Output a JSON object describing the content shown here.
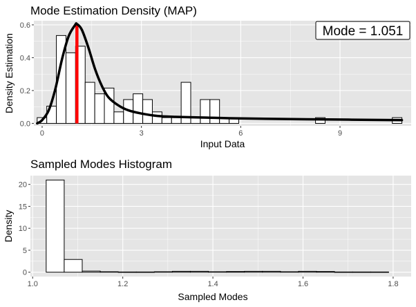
{
  "colors": {
    "panel_background": "#e5e5e5",
    "grid_major": "#ffffff",
    "bar_fill": "#ffffff",
    "bar_outline": "#000000",
    "density_line": "#000000",
    "mode_line": "#ff0000"
  },
  "chart_data": [
    {
      "type": "bar",
      "title": "Mode Estimation Density (MAP)",
      "xlabel": "Input Data",
      "ylabel": "Density Estimation",
      "xlim": [
        -0.25,
        11.15
      ],
      "ylim": [
        -0.015,
        0.625
      ],
      "x_ticks": [
        0,
        3,
        6,
        9
      ],
      "x_tick_labels": [
        "0",
        "3",
        "6",
        "9"
      ],
      "y_ticks": [
        0.0,
        0.2,
        0.4,
        0.6
      ],
      "y_tick_labels": [
        "0.0",
        "0.2",
        "0.4",
        "0.6"
      ],
      "grid": true,
      "bin_width": 0.29,
      "bins": [
        {
          "x0": -0.15,
          "y": 0.035
        },
        {
          "x0": 0.14,
          "y": 0.105
        },
        {
          "x0": 0.43,
          "y": 0.535
        },
        {
          "x0": 0.72,
          "y": 0.43
        },
        {
          "x0": 1.01,
          "y": 0.47
        },
        {
          "x0": 1.3,
          "y": 0.25
        },
        {
          "x0": 1.59,
          "y": 0.18
        },
        {
          "x0": 1.88,
          "y": 0.215
        },
        {
          "x0": 2.17,
          "y": 0.07
        },
        {
          "x0": 2.46,
          "y": 0.145
        },
        {
          "x0": 2.75,
          "y": 0.18
        },
        {
          "x0": 3.04,
          "y": 0.145
        },
        {
          "x0": 3.33,
          "y": 0.07
        },
        {
          "x0": 3.62,
          "y": 0.035
        },
        {
          "x0": 3.91,
          "y": 0.035
        },
        {
          "x0": 4.2,
          "y": 0.25
        },
        {
          "x0": 4.49,
          "y": 0.035
        },
        {
          "x0": 4.78,
          "y": 0.145
        },
        {
          "x0": 5.07,
          "y": 0.145
        },
        {
          "x0": 5.36,
          "y": 0.035
        },
        {
          "x0": 5.65,
          "y": 0.035
        },
        {
          "x0": 8.26,
          "y": 0.035
        },
        {
          "x0": 10.58,
          "y": 0.035
        }
      ],
      "density_curve": {
        "x": [
          -0.15,
          0.0,
          0.2,
          0.4,
          0.6,
          0.8,
          1.0,
          1.05,
          1.2,
          1.4,
          1.6,
          1.8,
          2.0,
          2.3,
          2.6,
          3.0,
          3.5,
          4.0,
          5.0,
          6.0,
          8.0,
          10.87
        ],
        "y": [
          0.0,
          0.02,
          0.08,
          0.21,
          0.39,
          0.53,
          0.6,
          0.605,
          0.57,
          0.46,
          0.33,
          0.23,
          0.16,
          0.11,
          0.08,
          0.06,
          0.045,
          0.04,
          0.035,
          0.03,
          0.025,
          0.02
        ]
      },
      "mode_line": {
        "x": 1.051
      },
      "annotation": "Mode = 1.051"
    },
    {
      "type": "bar",
      "title": "Sampled Modes Histogram",
      "xlabel": "Sampled Modes",
      "ylabel": "Density",
      "xlim": [
        0.995,
        1.84
      ],
      "ylim": [
        -1.0,
        22.0
      ],
      "x_ticks": [
        1.0,
        1.2,
        1.4,
        1.6,
        1.8
      ],
      "x_tick_labels": [
        "1.0",
        "1.2",
        "1.4",
        "1.6",
        "1.8"
      ],
      "y_ticks": [
        0,
        5,
        10,
        15,
        20
      ],
      "y_tick_labels": [
        "0",
        "5",
        "10",
        "15",
        "20"
      ],
      "grid": true,
      "bin_width": 0.04,
      "bins": [
        {
          "x0": 1.03,
          "y": 21.0
        },
        {
          "x0": 1.07,
          "y": 2.9
        },
        {
          "x0": 1.11,
          "y": 0.25
        },
        {
          "x0": 1.15,
          "y": 0.1
        },
        {
          "x0": 1.19,
          "y": 0.05
        },
        {
          "x0": 1.23,
          "y": 0.05
        },
        {
          "x0": 1.27,
          "y": 0.1
        },
        {
          "x0": 1.31,
          "y": 0.2
        },
        {
          "x0": 1.35,
          "y": 0.2
        },
        {
          "x0": 1.39,
          "y": 0.1
        },
        {
          "x0": 1.43,
          "y": 0.15
        },
        {
          "x0": 1.47,
          "y": 0.2
        },
        {
          "x0": 1.51,
          "y": 0.2
        },
        {
          "x0": 1.55,
          "y": 0.1
        },
        {
          "x0": 1.59,
          "y": 0.2
        },
        {
          "x0": 1.63,
          "y": 0.15
        },
        {
          "x0": 1.67,
          "y": 0.05
        },
        {
          "x0": 1.71,
          "y": 0.05
        },
        {
          "x0": 1.75,
          "y": 0.05
        }
      ]
    }
  ]
}
